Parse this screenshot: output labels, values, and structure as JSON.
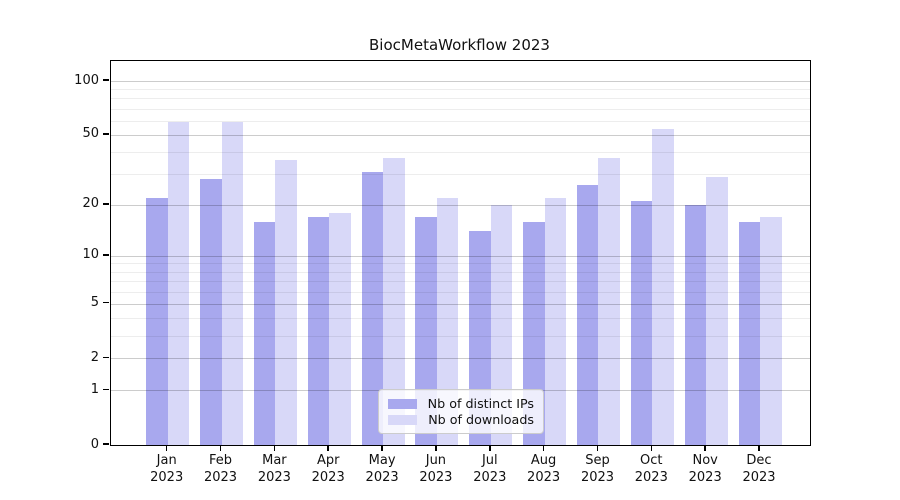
{
  "title": "BiocMetaWorkflow 2023",
  "chart_data": {
    "type": "bar",
    "title": "BiocMetaWorkflow 2023",
    "year": "2023",
    "months": [
      "Jan",
      "Feb",
      "Mar",
      "Apr",
      "May",
      "Jun",
      "Jul",
      "Aug",
      "Sep",
      "Oct",
      "Nov",
      "Dec"
    ],
    "categories": [
      "Jan 2023",
      "Feb 2023",
      "Mar 2023",
      "Apr 2023",
      "May 2023",
      "Jun 2023",
      "Jul 2023",
      "Aug 2023",
      "Sep 2023",
      "Oct 2023",
      "Nov 2023",
      "Dec 2023"
    ],
    "series": [
      {
        "name": "Nb of distinct IPs",
        "color": "#a8a8ee",
        "values": [
          22,
          28,
          16,
          17,
          31,
          17,
          14,
          16,
          26,
          21,
          20,
          16
        ]
      },
      {
        "name": "Nb of downloads",
        "color": "#d8d8f8",
        "values": [
          59,
          59,
          36,
          18,
          37,
          22,
          20,
          22,
          37,
          54,
          29,
          17
        ]
      }
    ],
    "yscale": "log1p",
    "y_ticks": [
      0,
      1,
      2,
      5,
      10,
      20,
      50,
      100
    ],
    "y_minor_ticks": [
      3,
      4,
      6,
      7,
      8,
      9,
      30,
      40,
      60,
      70,
      80,
      90
    ],
    "ylim": [
      0,
      129
    ],
    "grid": true,
    "legend_position": "lower center"
  },
  "legend": {
    "items": [
      {
        "label": "Nb of distinct IPs",
        "color": "#a8a8ee"
      },
      {
        "label": "Nb of downloads",
        "color": "#d8d8f8"
      }
    ]
  },
  "colors": {
    "distinct_ips": "#a8a8ee",
    "downloads": "#d8d8f8",
    "axis": "#000000",
    "grid_major": "rgba(0,0,0,0.20)",
    "grid_minor": "rgba(0,0,0,0.07)",
    "background": "#ffffff"
  }
}
